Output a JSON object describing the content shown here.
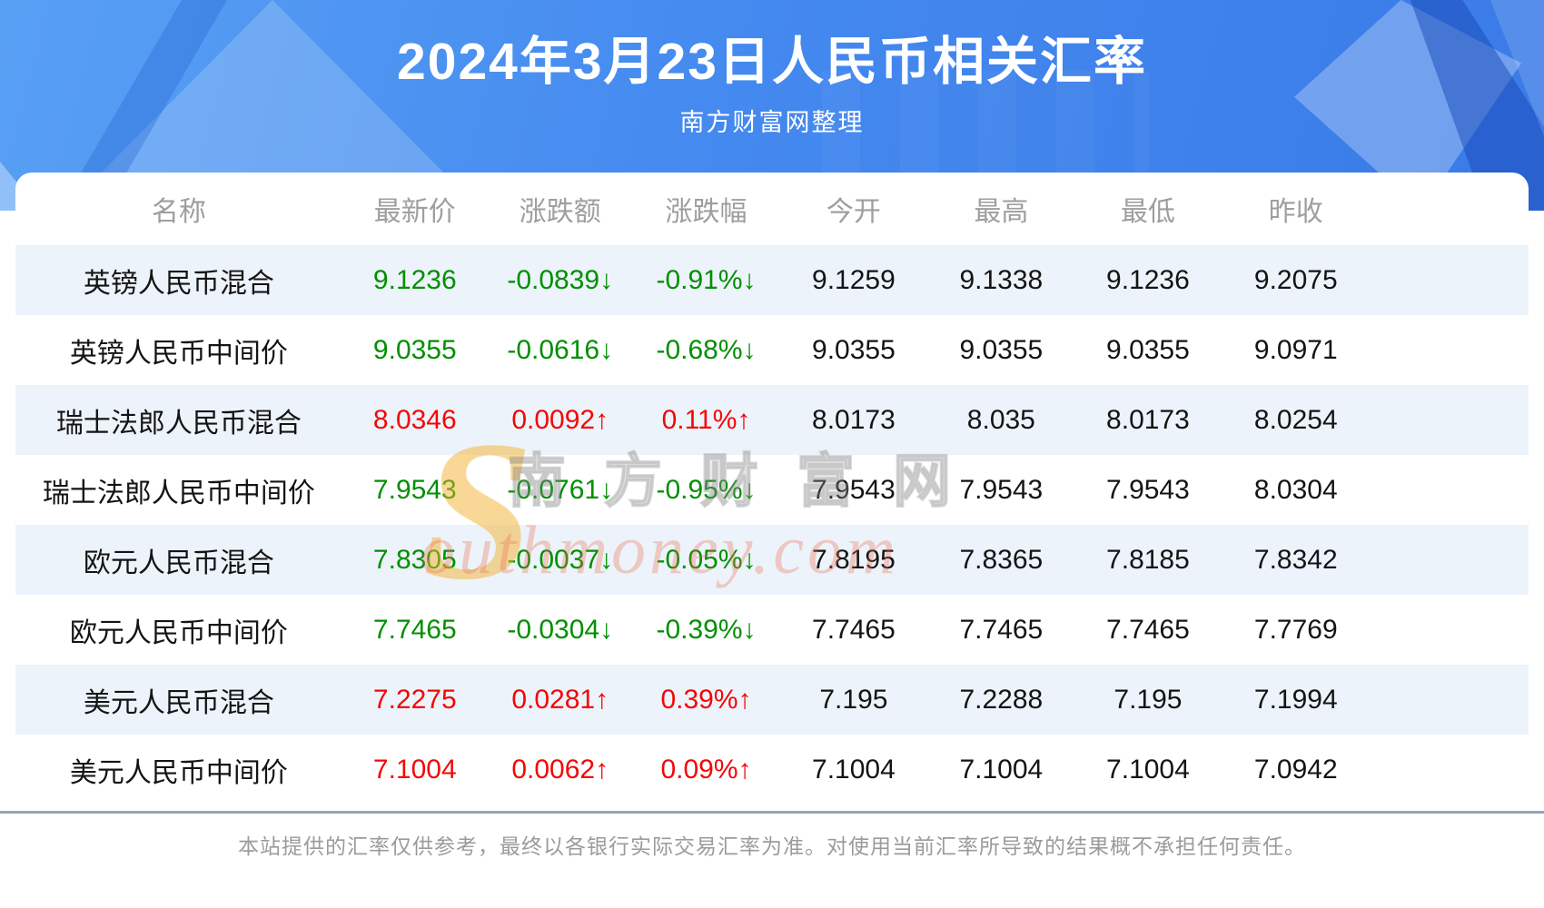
{
  "page": {
    "title": "2024年3月23日人民币相关汇率",
    "subtitle": "南方财富网整理",
    "disclaimer": "本站提供的汇率仅供参考，最终以各银行实际交易汇率为准。对使用当前汇率所导致的结果概不承担任何责任。"
  },
  "watermark": {
    "s_glyph": "S",
    "cn_text": "南方财富网",
    "en_text": "outhmoney.com"
  },
  "colors": {
    "up_red": "#f40606",
    "down_green": "#008f00",
    "header_text_gray": "#9e9e9e",
    "row_alt_blue": "#edf3fa",
    "hero_blue": "#4489ef",
    "divider_slate": "#90a4b8"
  },
  "chart_data": {
    "type": "table",
    "title": "2024年3月23日人民币相关汇率",
    "columns": [
      "名称",
      "最新价",
      "涨跌额",
      "涨跌幅",
      "今开",
      "最高",
      "最低",
      "昨收"
    ],
    "rows": [
      {
        "name": "英镑人民币混合",
        "latest": "9.1236",
        "change": "-0.0839↓",
        "change_pct": "-0.91%↓",
        "open": "9.1259",
        "high": "9.1338",
        "low": "9.1236",
        "prev_close": "9.2075",
        "trend": "down"
      },
      {
        "name": "英镑人民币中间价",
        "latest": "9.0355",
        "change": "-0.0616↓",
        "change_pct": "-0.68%↓",
        "open": "9.0355",
        "high": "9.0355",
        "low": "9.0355",
        "prev_close": "9.0971",
        "trend": "down"
      },
      {
        "name": "瑞士法郎人民币混合",
        "latest": "8.0346",
        "change": "0.0092↑",
        "change_pct": "0.11%↑",
        "open": "8.0173",
        "high": "8.035",
        "low": "8.0173",
        "prev_close": "8.0254",
        "trend": "up"
      },
      {
        "name": "瑞士法郎人民币中间价",
        "latest": "7.9543",
        "change": "-0.0761↓",
        "change_pct": "-0.95%↓",
        "open": "7.9543",
        "high": "7.9543",
        "low": "7.9543",
        "prev_close": "8.0304",
        "trend": "down"
      },
      {
        "name": "欧元人民币混合",
        "latest": "7.8305",
        "change": "-0.0037↓",
        "change_pct": "-0.05%↓",
        "open": "7.8195",
        "high": "7.8365",
        "low": "7.8185",
        "prev_close": "7.8342",
        "trend": "down"
      },
      {
        "name": "欧元人民币中间价",
        "latest": "7.7465",
        "change": "-0.0304↓",
        "change_pct": "-0.39%↓",
        "open": "7.7465",
        "high": "7.7465",
        "low": "7.7465",
        "prev_close": "7.7769",
        "trend": "down"
      },
      {
        "name": "美元人民币混合",
        "latest": "7.2275",
        "change": "0.0281↑",
        "change_pct": "0.39%↑",
        "open": "7.195",
        "high": "7.2288",
        "low": "7.195",
        "prev_close": "7.1994",
        "trend": "up"
      },
      {
        "name": "美元人民币中间价",
        "latest": "7.1004",
        "change": "0.0062↑",
        "change_pct": "0.09%↑",
        "open": "7.1004",
        "high": "7.1004",
        "low": "7.1004",
        "prev_close": "7.0942",
        "trend": "up"
      }
    ]
  }
}
